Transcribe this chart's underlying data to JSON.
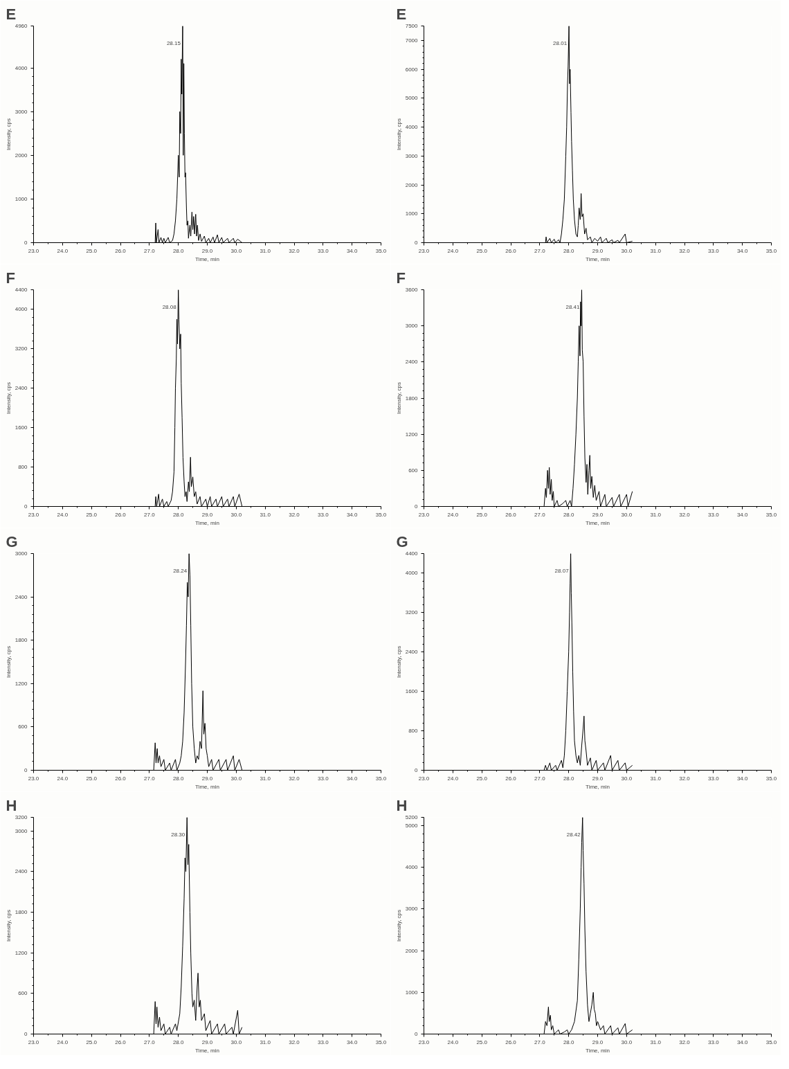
{
  "chart_data": [
    {
      "type": "line",
      "title": "E",
      "xlabel": "Time, min",
      "ylabel": "Intensity, cps",
      "color": "#000000",
      "grid": false,
      "x": [
        27.15,
        27.2,
        27.22,
        27.24,
        27.3,
        27.33,
        27.4,
        27.45,
        27.5,
        27.55,
        27.65,
        27.7,
        27.8,
        27.85,
        27.9,
        27.95,
        28.0,
        28.03,
        28.05,
        28.08,
        28.1,
        28.12,
        28.15,
        28.17,
        28.19,
        28.21,
        28.23,
        28.25,
        28.28,
        28.3,
        28.33,
        28.35,
        28.4,
        28.43,
        28.47,
        28.5,
        28.53,
        28.56,
        28.6,
        28.63,
        28.66,
        28.7,
        28.75,
        28.8,
        28.9,
        28.95,
        29.05,
        29.1,
        29.2,
        29.25,
        29.35,
        29.4,
        29.5,
        29.55,
        29.7,
        29.75,
        29.9,
        29.95,
        30.05,
        30.2
      ],
      "values": [
        0,
        0,
        450,
        0,
        300,
        0,
        120,
        0,
        100,
        0,
        120,
        0,
        50,
        200,
        500,
        1000,
        2000,
        1500,
        3000,
        2500,
        4200,
        3400,
        4960,
        2000,
        4100,
        2500,
        1500,
        1600,
        800,
        400,
        500,
        100,
        400,
        150,
        700,
        300,
        600,
        200,
        650,
        150,
        400,
        50,
        200,
        30,
        150,
        0,
        100,
        0,
        130,
        0,
        180,
        0,
        120,
        0,
        100,
        0,
        100,
        0,
        80,
        0
      ],
      "xlim": [
        23,
        35
      ],
      "ylim": [
        0,
        4960
      ],
      "xticks": [
        {
          "value": 23,
          "label": "23.0"
        },
        {
          "value": 24,
          "label": "24.0"
        },
        {
          "value": 25,
          "label": "25.0"
        },
        {
          "value": 26,
          "label": "26.0"
        },
        {
          "value": 27,
          "label": "27.0"
        },
        {
          "value": 28,
          "label": "28.0"
        },
        {
          "value": 29,
          "label": "29.0"
        },
        {
          "value": 30,
          "label": "30.0"
        },
        {
          "value": 31,
          "label": "31.0"
        },
        {
          "value": 32,
          "label": "32.0"
        },
        {
          "value": 33,
          "label": "33.0"
        },
        {
          "value": 34,
          "label": "34.0"
        },
        {
          "value": 35,
          "label": "35.0"
        }
      ],
      "yticks": [
        0,
        1000,
        2000,
        3000,
        4000,
        4960
      ],
      "annotations": [
        {
          "text": "28.15",
          "x": 28.15,
          "y": 4960
        }
      ]
    },
    {
      "type": "line",
      "title": "E",
      "xlabel": "Time, min",
      "ylabel": "Intensity, cps",
      "color": "#000000",
      "grid": false,
      "x": [
        27.15,
        27.2,
        27.22,
        27.25,
        27.35,
        27.4,
        27.5,
        27.55,
        27.65,
        27.7,
        27.75,
        27.8,
        27.85,
        27.9,
        27.93,
        27.96,
        27.98,
        28.01,
        28.03,
        28.05,
        28.08,
        28.1,
        28.13,
        28.16,
        28.2,
        28.25,
        28.3,
        28.33,
        28.36,
        28.4,
        28.43,
        28.46,
        28.5,
        28.55,
        28.6,
        28.65,
        28.75,
        28.8,
        28.9,
        29.0,
        29.1,
        29.15,
        29.3,
        29.35,
        29.5,
        29.55,
        29.7,
        29.75,
        29.95,
        30.0,
        30.2
      ],
      "values": [
        0,
        0,
        200,
        0,
        150,
        0,
        120,
        0,
        100,
        0,
        300,
        800,
        1500,
        3000,
        4000,
        5500,
        6100,
        7500,
        5500,
        6000,
        4500,
        3500,
        2500,
        1500,
        800,
        300,
        200,
        600,
        1200,
        800,
        1700,
        900,
        1000,
        300,
        500,
        100,
        200,
        0,
        150,
        50,
        200,
        0,
        150,
        0,
        100,
        0,
        80,
        0,
        300,
        0,
        50
      ],
      "xlim": [
        23,
        35
      ],
      "ylim": [
        0,
        7500
      ],
      "xticks": [
        {
          "value": 23,
          "label": "23.0"
        },
        {
          "value": 24,
          "label": "24.0"
        },
        {
          "value": 25,
          "label": "25.0"
        },
        {
          "value": 26,
          "label": "26.0"
        },
        {
          "value": 27,
          "label": "27.0"
        },
        {
          "value": 28,
          "label": "28.0"
        },
        {
          "value": 29,
          "label": "29.0"
        },
        {
          "value": 30,
          "label": "30.0"
        },
        {
          "value": 31,
          "label": "31.0"
        },
        {
          "value": 32,
          "label": "32.0"
        },
        {
          "value": 33,
          "label": "33.0"
        },
        {
          "value": 34,
          "label": "34.0"
        },
        {
          "value": 35,
          "label": "35.0"
        }
      ],
      "yticks": [
        0,
        1000,
        2000,
        3000,
        4000,
        5000,
        6000,
        7000,
        7500
      ],
      "annotations": [
        {
          "text": "28.01",
          "x": 28.01,
          "y": 7500
        }
      ]
    },
    {
      "type": "line",
      "title": "F",
      "xlabel": "Time, min",
      "ylabel": "Intensity, cps",
      "color": "#000000",
      "grid": false,
      "x": [
        27.15,
        27.2,
        27.22,
        27.25,
        27.32,
        27.35,
        27.45,
        27.5,
        27.6,
        27.65,
        27.75,
        27.8,
        27.85,
        27.88,
        27.9,
        27.93,
        27.95,
        27.97,
        28.0,
        28.02,
        28.05,
        28.08,
        28.1,
        28.13,
        28.16,
        28.2,
        28.23,
        28.27,
        28.3,
        28.35,
        28.38,
        28.42,
        28.45,
        28.5,
        28.55,
        28.6,
        28.65,
        28.75,
        28.8,
        28.95,
        29.0,
        29.1,
        29.15,
        29.3,
        29.35,
        29.5,
        29.55,
        29.7,
        29.75,
        29.9,
        29.95,
        30.1,
        30.2
      ],
      "values": [
        0,
        0,
        200,
        0,
        250,
        0,
        150,
        0,
        100,
        0,
        120,
        300,
        700,
        1600,
        2400,
        3000,
        3800,
        3300,
        4400,
        3800,
        3200,
        3500,
        2500,
        1800,
        1000,
        500,
        200,
        300,
        100,
        500,
        300,
        1000,
        400,
        600,
        200,
        300,
        50,
        200,
        0,
        150,
        0,
        200,
        0,
        150,
        0,
        200,
        0,
        150,
        0,
        200,
        0,
        250,
        0
      ],
      "xlim": [
        23,
        35
      ],
      "ylim": [
        0,
        4400
      ],
      "xticks": [
        {
          "value": 23,
          "label": "23.0"
        },
        {
          "value": 24,
          "label": "24.0"
        },
        {
          "value": 25,
          "label": "25.0"
        },
        {
          "value": 26,
          "label": "26.0"
        },
        {
          "value": 27,
          "label": "27.0"
        },
        {
          "value": 28,
          "label": "28.0"
        },
        {
          "value": 29,
          "label": "29.0"
        },
        {
          "value": 30,
          "label": "30.0"
        },
        {
          "value": 31,
          "label": "31.0"
        },
        {
          "value": 32,
          "label": "32.0"
        },
        {
          "value": 33,
          "label": "33.0"
        },
        {
          "value": 34,
          "label": "34.0"
        },
        {
          "value": 35,
          "label": "35.0"
        }
      ],
      "yticks": [
        0,
        800,
        1600,
        2400,
        3200,
        4000,
        4400
      ],
      "annotations": [
        {
          "text": "28.08",
          "x": 28.0,
          "y": 4400
        }
      ]
    },
    {
      "type": "line",
      "title": "F",
      "xlabel": "Time, min",
      "ylabel": "Intensity, cps",
      "color": "#000000",
      "grid": false,
      "x": [
        27.15,
        27.2,
        27.23,
        27.27,
        27.3,
        27.33,
        27.36,
        27.4,
        27.43,
        27.47,
        27.5,
        27.6,
        27.65,
        27.8,
        27.9,
        27.95,
        28.05,
        28.1,
        28.15,
        28.2,
        28.25,
        28.3,
        28.33,
        28.36,
        28.39,
        28.41,
        28.43,
        28.45,
        28.47,
        28.5,
        28.53,
        28.56,
        28.6,
        28.63,
        28.66,
        28.7,
        28.73,
        28.76,
        28.8,
        28.85,
        28.9,
        28.95,
        29.05,
        29.1,
        29.25,
        29.3,
        29.5,
        29.55,
        29.75,
        29.8,
        30.0,
        30.05,
        30.2
      ],
      "values": [
        0,
        300,
        150,
        600,
        300,
        650,
        200,
        450,
        100,
        250,
        0,
        100,
        0,
        50,
        100,
        0,
        100,
        0,
        300,
        700,
        1200,
        1800,
        2400,
        3000,
        2500,
        3400,
        3000,
        3600,
        2600,
        2400,
        1500,
        800,
        400,
        700,
        200,
        600,
        850,
        300,
        500,
        150,
        350,
        100,
        250,
        0,
        200,
        0,
        150,
        0,
        200,
        0,
        200,
        0,
        250
      ],
      "xlim": [
        23,
        35
      ],
      "ylim": [
        0,
        3600
      ],
      "xticks": [
        {
          "value": 23,
          "label": "23.0"
        },
        {
          "value": 24,
          "label": "24.0"
        },
        {
          "value": 25,
          "label": "25.0"
        },
        {
          "value": 26,
          "label": "26.0"
        },
        {
          "value": 27,
          "label": "27.0"
        },
        {
          "value": 28,
          "label": "28.0"
        },
        {
          "value": 29,
          "label": "29.0"
        },
        {
          "value": 30,
          "label": "30.0"
        },
        {
          "value": 31,
          "label": "31.0"
        },
        {
          "value": 32,
          "label": "32.0"
        },
        {
          "value": 33,
          "label": "33.0"
        },
        {
          "value": 34,
          "label": "34.0"
        },
        {
          "value": 35,
          "label": "35.0"
        }
      ],
      "yticks": [
        0,
        600,
        1200,
        1800,
        2400,
        3000,
        3600
      ],
      "annotations": [
        {
          "text": "28.41",
          "x": 28.45,
          "y": 3600
        }
      ]
    },
    {
      "type": "line",
      "title": "G",
      "xlabel": "Time, min",
      "ylabel": "Intensity, cps",
      "color": "#000000",
      "grid": false,
      "x": [
        27.15,
        27.2,
        27.23,
        27.27,
        27.3,
        27.35,
        27.4,
        27.5,
        27.55,
        27.7,
        27.75,
        27.9,
        27.95,
        28.05,
        28.1,
        28.15,
        28.2,
        28.25,
        28.28,
        28.31,
        28.34,
        28.37,
        28.4,
        28.43,
        28.46,
        28.5,
        28.55,
        28.6,
        28.65,
        28.7,
        28.75,
        28.8,
        28.85,
        28.88,
        28.92,
        28.96,
        29.0,
        29.05,
        29.15,
        29.2,
        29.4,
        29.45,
        29.65,
        29.7,
        29.9,
        29.95,
        30.1,
        30.2
      ],
      "values": [
        0,
        380,
        100,
        300,
        100,
        200,
        50,
        150,
        0,
        100,
        0,
        150,
        0,
        100,
        200,
        400,
        800,
        1500,
        2000,
        2600,
        2400,
        3000,
        2700,
        2000,
        1200,
        600,
        300,
        100,
        200,
        150,
        400,
        300,
        1100,
        500,
        650,
        300,
        200,
        50,
        150,
        0,
        150,
        0,
        150,
        0,
        200,
        0,
        150,
        0
      ],
      "xlim": [
        23,
        35
      ],
      "ylim": [
        0,
        3000
      ],
      "xticks": [
        {
          "value": 23,
          "label": "23.0"
        },
        {
          "value": 24,
          "label": "24.0"
        },
        {
          "value": 25,
          "label": "25.0"
        },
        {
          "value": 26,
          "label": "26.0"
        },
        {
          "value": 27,
          "label": "27.0"
        },
        {
          "value": 28,
          "label": "28.0"
        },
        {
          "value": 29,
          "label": "29.0"
        },
        {
          "value": 30,
          "label": "30.0"
        },
        {
          "value": 31,
          "label": "31.0"
        },
        {
          "value": 32,
          "label": "32.0"
        },
        {
          "value": 33,
          "label": "33.0"
        },
        {
          "value": 34,
          "label": "34.0"
        },
        {
          "value": 35,
          "label": "35.0"
        }
      ],
      "yticks": [
        0,
        600,
        1200,
        1800,
        2400,
        3000
      ],
      "annotations": [
        {
          "text": "28.24",
          "x": 28.37,
          "y": 3000
        }
      ]
    },
    {
      "type": "line",
      "title": "G",
      "xlabel": "Time, min",
      "ylabel": "Intensity, cps",
      "color": "#000000",
      "grid": false,
      "x": [
        27.15,
        27.2,
        27.25,
        27.35,
        27.4,
        27.55,
        27.6,
        27.75,
        27.8,
        27.85,
        27.9,
        27.95,
        28.0,
        28.03,
        28.05,
        28.07,
        28.09,
        28.11,
        28.14,
        28.17,
        28.2,
        28.25,
        28.3,
        28.35,
        28.4,
        28.45,
        28.5,
        28.53,
        28.56,
        28.6,
        28.65,
        28.75,
        28.8,
        28.95,
        29.0,
        29.2,
        29.25,
        29.45,
        29.5,
        29.7,
        29.75,
        29.95,
        30.0,
        30.2
      ],
      "values": [
        0,
        100,
        0,
        150,
        0,
        100,
        0,
        200,
        50,
        300,
        800,
        1600,
        2400,
        3200,
        3800,
        4400,
        3600,
        3000,
        2000,
        1200,
        600,
        300,
        150,
        300,
        100,
        500,
        850,
        1100,
        600,
        400,
        100,
        250,
        0,
        200,
        0,
        150,
        0,
        300,
        0,
        200,
        0,
        150,
        0,
        100
      ],
      "xlim": [
        23,
        35
      ],
      "ylim": [
        0,
        4400
      ],
      "xticks": [
        {
          "value": 23,
          "label": "23.0"
        },
        {
          "value": 24,
          "label": "24.0"
        },
        {
          "value": 25,
          "label": "25.0"
        },
        {
          "value": 26,
          "label": "26.0"
        },
        {
          "value": 27,
          "label": "27.0"
        },
        {
          "value": 28,
          "label": "28.0"
        },
        {
          "value": 29,
          "label": "29.0"
        },
        {
          "value": 30,
          "label": "30.0"
        },
        {
          "value": 31,
          "label": "31.0"
        },
        {
          "value": 32,
          "label": "32.0"
        },
        {
          "value": 33,
          "label": "33.0"
        },
        {
          "value": 34,
          "label": "34.0"
        },
        {
          "value": 35,
          "label": "35.0"
        }
      ],
      "yticks": [
        0,
        800,
        1600,
        2400,
        3200,
        4000,
        4400
      ],
      "annotations": [
        {
          "text": "28.07",
          "x": 28.07,
          "y": 4400
        }
      ]
    },
    {
      "type": "line",
      "title": "H",
      "xlabel": "Time, min",
      "ylabel": "Intensity, cps",
      "color": "#000000",
      "grid": false,
      "x": [
        27.15,
        27.2,
        27.23,
        27.26,
        27.3,
        27.35,
        27.4,
        27.5,
        27.55,
        27.7,
        27.75,
        27.9,
        27.95,
        28.05,
        28.1,
        28.15,
        28.2,
        28.23,
        28.26,
        28.3,
        28.33,
        28.36,
        28.4,
        28.43,
        28.47,
        28.5,
        28.55,
        28.6,
        28.65,
        28.68,
        28.72,
        28.76,
        28.8,
        28.9,
        28.95,
        29.1,
        29.15,
        29.35,
        29.4,
        29.6,
        29.65,
        29.85,
        29.9,
        30.05,
        30.1,
        30.2
      ],
      "values": [
        0,
        480,
        150,
        400,
        100,
        250,
        50,
        150,
        0,
        100,
        0,
        150,
        50,
        300,
        700,
        1300,
        2000,
        2600,
        2400,
        3200,
        2500,
        2800,
        1800,
        1200,
        600,
        400,
        500,
        200,
        700,
        900,
        400,
        500,
        200,
        300,
        50,
        200,
        0,
        150,
        0,
        150,
        0,
        100,
        0,
        350,
        0,
        100
      ],
      "xlim": [
        23,
        35
      ],
      "ylim": [
        0,
        3200
      ],
      "xticks": [
        {
          "value": 23,
          "label": "23.0"
        },
        {
          "value": 24,
          "label": "24.0"
        },
        {
          "value": 25,
          "label": "25.0"
        },
        {
          "value": 26,
          "label": "26.0"
        },
        {
          "value": 27,
          "label": "27.0"
        },
        {
          "value": 28,
          "label": "28.0"
        },
        {
          "value": 29,
          "label": "29.0"
        },
        {
          "value": 30,
          "label": "30.0"
        },
        {
          "value": 31,
          "label": "31.0"
        },
        {
          "value": 32,
          "label": "32.0"
        },
        {
          "value": 33,
          "label": "33.0"
        },
        {
          "value": 34,
          "label": "34.0"
        },
        {
          "value": 35,
          "label": "35.0"
        }
      ],
      "yticks": [
        0,
        600,
        1200,
        1800,
        2400,
        3000,
        3200
      ],
      "annotations": [
        {
          "text": "28.30",
          "x": 28.3,
          "y": 3200
        }
      ]
    },
    {
      "type": "line",
      "title": "H",
      "xlabel": "Time, min",
      "ylabel": "Intensity, cps",
      "color": "#000000",
      "grid": false,
      "x": [
        27.15,
        27.2,
        27.25,
        27.3,
        27.33,
        27.37,
        27.4,
        27.45,
        27.5,
        27.65,
        27.7,
        27.85,
        27.95,
        28.0,
        28.1,
        28.2,
        28.3,
        28.35,
        28.4,
        28.43,
        28.45,
        28.48,
        28.5,
        28.53,
        28.56,
        28.6,
        28.65,
        28.7,
        28.75,
        28.8,
        28.85,
        28.88,
        28.92,
        28.96,
        29.0,
        29.1,
        29.2,
        29.25,
        29.45,
        29.5,
        29.7,
        29.75,
        29.95,
        30.0,
        30.2
      ],
      "values": [
        0,
        300,
        200,
        650,
        300,
        450,
        100,
        200,
        0,
        100,
        0,
        50,
        100,
        0,
        100,
        300,
        800,
        1800,
        3000,
        4000,
        4600,
        5200,
        4400,
        3600,
        2500,
        1500,
        700,
        300,
        500,
        700,
        1000,
        600,
        500,
        200,
        300,
        100,
        200,
        0,
        200,
        0,
        150,
        0,
        250,
        0,
        100
      ],
      "xlim": [
        23,
        35
      ],
      "ylim": [
        0,
        5200
      ],
      "xticks": [
        {
          "value": 23,
          "label": "23.0"
        },
        {
          "value": 24,
          "label": "24.0"
        },
        {
          "value": 25,
          "label": "25.0"
        },
        {
          "value": 26,
          "label": "26.0"
        },
        {
          "value": 27,
          "label": "27.0"
        },
        {
          "value": 28,
          "label": "28.0"
        },
        {
          "value": 29,
          "label": "29.0"
        },
        {
          "value": 30,
          "label": "30.0"
        },
        {
          "value": 31,
          "label": "31.0"
        },
        {
          "value": 32,
          "label": "32.0"
        },
        {
          "value": 33,
          "label": "33.0"
        },
        {
          "value": 34,
          "label": "34.0"
        },
        {
          "value": 35,
          "label": "35.0"
        }
      ],
      "yticks": [
        0,
        1000,
        2000,
        3000,
        4000,
        5000,
        5200
      ],
      "annotations": [
        {
          "text": "28.42",
          "x": 28.48,
          "y": 5200
        }
      ]
    }
  ]
}
